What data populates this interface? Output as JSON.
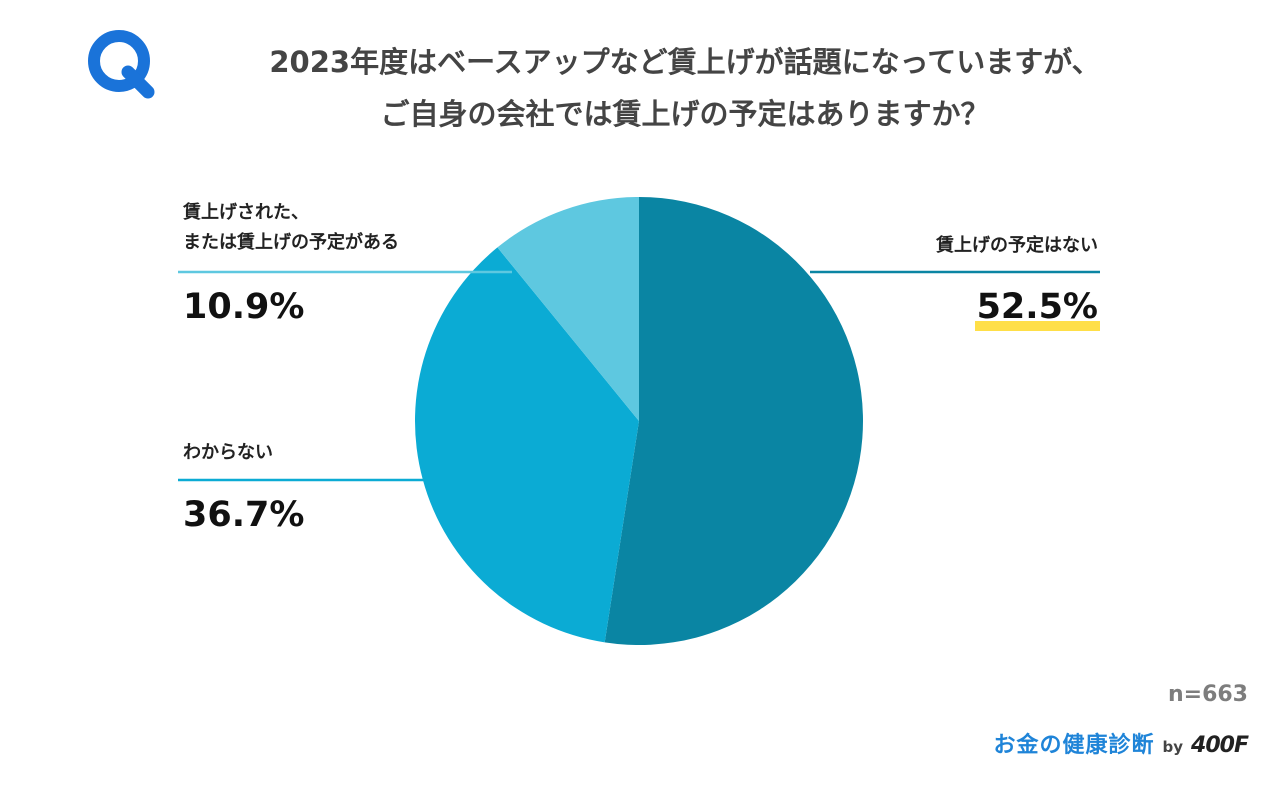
{
  "header": {
    "q_letter": "Q",
    "title_line1": "2023年度はベースアップなど賃上げが話題になっていますが、",
    "title_line2": "ご自身の会社では賃上げの予定はありますか？"
  },
  "colors": {
    "accent": "#1a73d9",
    "highlight": "#ffdf48",
    "slice_none": "#0a85a3",
    "slice_unknown": "#0babd4",
    "slice_planned": "#5ec8e0"
  },
  "chart_data": {
    "type": "pie",
    "title": "2023年度はベースアップなど賃上げが話題になっていますが、ご自身の会社では賃上げの予定はありますか？",
    "start": "12 o'clock, clockwise",
    "slices": [
      {
        "label": "賃上げの予定はない",
        "value": 52.5,
        "display": "52.5%",
        "color": "#0a85a3",
        "highlighted": true
      },
      {
        "label": "わからない",
        "value": 36.7,
        "display": "36.7%",
        "color": "#0babd4"
      },
      {
        "label_line1": "賃上げされた、",
        "label_line2": "または賃上げの予定がある",
        "value": 10.9,
        "display": "10.9%",
        "color": "#5ec8e0"
      }
    ],
    "sample_size": "n=663"
  },
  "footer": {
    "brand_name": "お金の健康診断",
    "brand_by": "by",
    "brand_logo": "400F"
  }
}
